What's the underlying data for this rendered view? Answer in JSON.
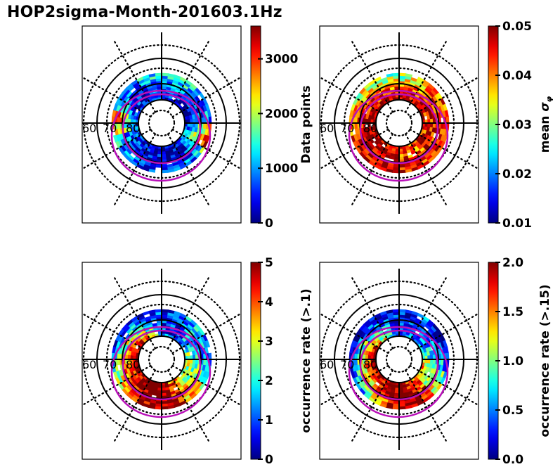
{
  "title": "HOP2sigma-Month-201603.1Hz",
  "chart_data": [
    {
      "type": "heatmap",
      "projection": "polar (magnetic latitude / MLT)",
      "position": "top-left",
      "colormap": "jet",
      "colorbar": {
        "label": "Data points",
        "label_math": "",
        "vmin": 0,
        "vmax": 3600,
        "ticks": [
          0,
          1000,
          2000,
          3000
        ],
        "tick_labels": [
          "0",
          "1000",
          "2000",
          "3000"
        ]
      },
      "latitude_labels": [
        "60",
        "70",
        "80"
      ],
      "ring_lat_range": [
        65,
        85
      ],
      "sector_values_outer": [
        1200,
        1600,
        1400,
        900,
        800,
        1000,
        2500,
        3400,
        1500,
        900,
        600,
        400,
        500,
        600,
        700,
        900,
        1200,
        2600,
        3300,
        1600,
        1000,
        900,
        1100,
        1300
      ],
      "sector_values_inner": [
        300,
        500,
        400,
        300,
        200,
        300,
        600,
        900,
        500,
        300,
        200,
        100,
        200,
        300,
        300,
        400,
        500,
        700,
        900,
        600,
        300,
        300,
        300,
        400
      ]
    },
    {
      "type": "heatmap",
      "projection": "polar (magnetic latitude / MLT)",
      "position": "top-right",
      "colormap": "jet",
      "colorbar": {
        "label": "mean ",
        "label_math": "σφ",
        "vmin": 0.01,
        "vmax": 0.05,
        "ticks": [
          0.01,
          0.02,
          0.03,
          0.04,
          0.05
        ],
        "tick_labels": [
          "0.01",
          "0.02",
          "0.03",
          "0.04",
          "0.05"
        ]
      },
      "latitude_labels": [
        "60",
        "70",
        "80"
      ],
      "ring_lat_range": [
        65,
        85
      ],
      "sector_values_outer": [
        0.03,
        0.032,
        0.036,
        0.04,
        0.043,
        0.045,
        0.046,
        0.047,
        0.045,
        0.044,
        0.045,
        0.046,
        0.047,
        0.048,
        0.047,
        0.046,
        0.044,
        0.041,
        0.038,
        0.036,
        0.034,
        0.031,
        0.029,
        0.03
      ],
      "sector_values_inner": [
        0.05,
        0.05,
        0.049,
        0.047,
        0.046,
        0.044,
        0.043,
        0.044,
        0.046,
        0.04,
        0.038,
        0.042,
        0.044,
        0.046,
        0.048,
        0.049,
        0.05,
        0.05,
        0.05,
        0.05,
        0.05,
        0.05,
        0.05,
        0.05
      ]
    },
    {
      "type": "heatmap",
      "projection": "polar (magnetic latitude / MLT)",
      "position": "bottom-left",
      "colormap": "jet",
      "colorbar": {
        "label": "occurrence rate (>.1)",
        "label_math": "",
        "vmin": 0,
        "vmax": 5,
        "ticks": [
          0,
          1,
          2,
          3,
          4,
          5
        ],
        "tick_labels": [
          "0",
          "1",
          "2",
          "3",
          "4",
          "5"
        ]
      },
      "latitude_labels": [
        "60",
        "70",
        "80"
      ],
      "ring_lat_range": [
        65,
        85
      ],
      "sector_values_outer": [
        0.8,
        1.0,
        1.5,
        2.0,
        1.2,
        1.0,
        1.5,
        2.2,
        3.0,
        3.5,
        4.5,
        5.0,
        5.0,
        4.8,
        4.0,
        3.0,
        2.5,
        1.8,
        1.2,
        0.8,
        0.6,
        0.5,
        0.6,
        0.7
      ],
      "sector_values_inner": [
        1.0,
        0.8,
        0.7,
        1.2,
        2.0,
        2.5,
        3.0,
        2.8,
        2.5,
        3.5,
        4.0,
        5.0,
        5.0,
        5.0,
        5.0,
        5.0,
        5.0,
        5.0,
        5.0,
        5.0,
        4.5,
        4.0,
        3.0,
        2.0
      ]
    },
    {
      "type": "heatmap",
      "projection": "polar (magnetic latitude / MLT)",
      "position": "bottom-right",
      "colormap": "jet",
      "colorbar": {
        "label": "occurrence rate (>.15)",
        "label_math": "",
        "vmin": 0.0,
        "vmax": 2.0,
        "ticks": [
          0.0,
          0.5,
          1.0,
          1.5,
          2.0
        ],
        "tick_labels": [
          "0.0",
          "0.5",
          "1.0",
          "1.5",
          "2.0"
        ]
      },
      "latitude_labels": [
        "60",
        "70",
        "80"
      ],
      "ring_lat_range": [
        65,
        85
      ],
      "sector_values_outer": [
        0.2,
        0.3,
        0.4,
        0.3,
        0.2,
        0.2,
        0.4,
        0.8,
        1.2,
        1.8,
        2.0,
        2.0,
        1.8,
        1.5,
        1.0,
        0.6,
        0.4,
        0.3,
        0.2,
        0.1,
        0.1,
        0.1,
        0.2,
        0.2
      ],
      "sector_values_inner": [
        0.5,
        0.4,
        0.3,
        0.5,
        0.8,
        1.0,
        1.3,
        1.5,
        1.2,
        1.5,
        1.8,
        2.0,
        2.0,
        2.0,
        2.0,
        2.0,
        2.0,
        2.0,
        2.0,
        2.0,
        1.6,
        1.2,
        0.9,
        0.6
      ]
    }
  ]
}
